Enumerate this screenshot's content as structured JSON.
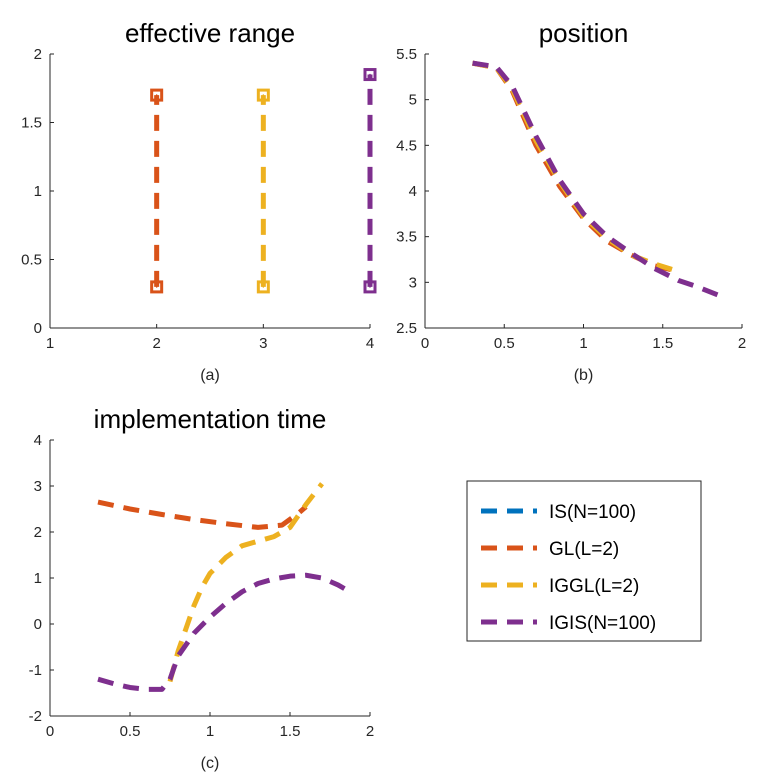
{
  "colors": {
    "blue": "#0072BD",
    "orange": "#D95319",
    "yellow": "#EDB120",
    "purple": "#7E2F8E"
  },
  "chart_data": [
    {
      "id": "a",
      "type": "line",
      "title": "effective range",
      "caption": "(a)",
      "xlim": [
        1,
        4
      ],
      "ylim": [
        0,
        2
      ],
      "xticks": [
        1,
        2,
        3,
        4
      ],
      "yticks": [
        0,
        0.5,
        1,
        1.5,
        2
      ],
      "xtick_labels": [
        "1",
        "2",
        "3",
        "4"
      ],
      "ytick_labels": [
        "0",
        "0.5",
        "1",
        "1.5",
        "2"
      ],
      "series": [
        {
          "name": "GL(L=2)",
          "color": "orange",
          "marker": "square",
          "x": [
            2,
            2
          ],
          "y": [
            0.3,
            1.7
          ]
        },
        {
          "name": "IGGL(L=2)",
          "color": "yellow",
          "marker": "square",
          "x": [
            3,
            3
          ],
          "y": [
            0.3,
            1.7
          ]
        },
        {
          "name": "IGIS(N=100)",
          "color": "purple",
          "marker": "square",
          "x": [
            4,
            4
          ],
          "y": [
            0.3,
            1.85
          ]
        }
      ]
    },
    {
      "id": "b",
      "type": "line",
      "title": "position",
      "caption": "(b)",
      "xlim": [
        0,
        2
      ],
      "ylim": [
        2.5,
        5.5
      ],
      "xticks": [
        0,
        0.5,
        1,
        1.5,
        2
      ],
      "yticks": [
        2.5,
        3,
        3.5,
        4,
        4.5,
        5,
        5.5
      ],
      "xtick_labels": [
        "0",
        "0.5",
        "1",
        "1.5",
        "2"
      ],
      "ytick_labels": [
        "2.5",
        "3",
        "3.5",
        "4",
        "4.5",
        "5",
        "5.5"
      ],
      "series": [
        {
          "name": "GL(L=2)",
          "color": "orange",
          "x": [
            0.3,
            0.45,
            0.55,
            0.7,
            0.85,
            1.0,
            1.15,
            1.3,
            1.45,
            1.6
          ],
          "y": [
            5.4,
            5.35,
            5.1,
            4.5,
            4.05,
            3.7,
            3.45,
            3.3,
            3.18,
            3.12
          ]
        },
        {
          "name": "IGGL(L=2)",
          "color": "yellow",
          "x": [
            0.3,
            0.45,
            0.55,
            0.7,
            0.85,
            1.0,
            1.15,
            1.3,
            1.45,
            1.6
          ],
          "y": [
            5.4,
            5.35,
            5.12,
            4.55,
            4.1,
            3.72,
            3.48,
            3.3,
            3.2,
            3.12
          ]
        },
        {
          "name": "IGIS(N=100)",
          "color": "purple",
          "x": [
            0.3,
            0.45,
            0.55,
            0.7,
            0.85,
            1.0,
            1.15,
            1.3,
            1.45,
            1.6,
            1.72,
            1.85
          ],
          "y": [
            5.4,
            5.36,
            5.15,
            4.6,
            4.12,
            3.75,
            3.5,
            3.32,
            3.15,
            3.02,
            2.95,
            2.86
          ]
        }
      ]
    },
    {
      "id": "c",
      "type": "line",
      "title": "implementation time",
      "caption": "(c)",
      "xlim": [
        0,
        2
      ],
      "ylim": [
        -2,
        4
      ],
      "xticks": [
        0,
        0.5,
        1,
        1.5,
        2
      ],
      "yticks": [
        -2,
        -1,
        0,
        1,
        2,
        3,
        4
      ],
      "xtick_labels": [
        "0",
        "0.5",
        "1",
        "1.5",
        "2"
      ],
      "ytick_labels": [
        "-2",
        "-1",
        "0",
        "1",
        "2",
        "3",
        "4"
      ],
      "series": [
        {
          "name": "GL(L=2)",
          "color": "orange",
          "x": [
            0.3,
            0.5,
            0.7,
            0.9,
            1.1,
            1.3,
            1.45,
            1.55,
            1.6
          ],
          "y": [
            2.65,
            2.5,
            2.38,
            2.27,
            2.18,
            2.1,
            2.15,
            2.4,
            2.55
          ]
        },
        {
          "name": "IGGL(L=2)",
          "color": "yellow",
          "x": [
            0.75,
            0.8,
            0.85,
            0.9,
            0.95,
            1.0,
            1.1,
            1.2,
            1.3,
            1.4,
            1.5,
            1.6,
            1.7
          ],
          "y": [
            -1.25,
            -0.6,
            -0.1,
            0.4,
            0.8,
            1.1,
            1.45,
            1.7,
            1.8,
            1.9,
            2.1,
            2.6,
            3.05
          ]
        },
        {
          "name": "IGIS(N=100)",
          "color": "purple",
          "x": [
            0.3,
            0.4,
            0.5,
            0.6,
            0.7,
            0.75,
            0.8,
            0.9,
            1.0,
            1.1,
            1.2,
            1.3,
            1.4,
            1.5,
            1.6,
            1.7,
            1.8,
            1.85
          ],
          "y": [
            -1.2,
            -1.3,
            -1.38,
            -1.42,
            -1.42,
            -1.2,
            -0.7,
            -0.2,
            0.15,
            0.45,
            0.7,
            0.88,
            0.98,
            1.04,
            1.06,
            1.0,
            0.85,
            0.75
          ]
        }
      ]
    }
  ],
  "legend": {
    "placement": "lower-right",
    "entries": [
      {
        "label": "IS(N=100)",
        "color": "blue"
      },
      {
        "label": "GL(L=2)",
        "color": "orange"
      },
      {
        "label": "IGGL(L=2)",
        "color": "yellow"
      },
      {
        "label": "IGIS(N=100)",
        "color": "purple"
      }
    ]
  }
}
